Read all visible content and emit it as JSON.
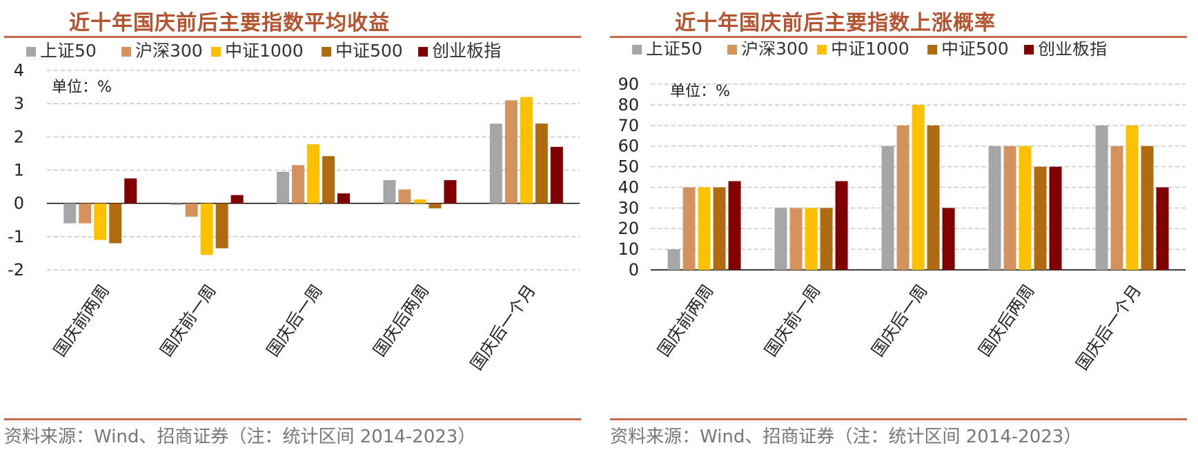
{
  "panels": [
    {
      "title": "近十年国庆前后主要指数平均收益",
      "source": "资料来源：Wind、招商证券（注：统计区间 2014-2023）",
      "unit": "单位：%"
    },
    {
      "title": "近十年国庆前后主要指数上涨概率",
      "source": "资料来源：Wind、招商证券（注：统计区间 2014-2023）",
      "unit": "单位：%"
    }
  ],
  "colors": {
    "title": "#b5532e",
    "rule": "#c8694a",
    "series": [
      "#a6a6a6",
      "#d4935c",
      "#ffc000",
      "#b06a10",
      "#800000"
    ]
  },
  "chart_data": [
    {
      "type": "bar",
      "title": "近十年国庆前后主要指数平均收益",
      "categories": [
        "国庆前两周",
        "国庆前一周",
        "国庆后一周",
        "国庆后两周",
        "国庆后一个月"
      ],
      "series": [
        {
          "name": "上证50",
          "values": [
            -0.6,
            -0.05,
            0.95,
            0.7,
            2.4
          ]
        },
        {
          "name": "沪深300",
          "values": [
            -0.6,
            -0.4,
            1.15,
            0.42,
            3.1
          ]
        },
        {
          "name": "中证1000",
          "values": [
            -1.1,
            -1.55,
            1.78,
            0.12,
            3.2
          ]
        },
        {
          "name": "中证500",
          "values": [
            -1.2,
            -1.35,
            1.42,
            -0.15,
            2.4
          ]
        },
        {
          "name": "创业板指",
          "values": [
            0.75,
            0.25,
            0.3,
            0.7,
            1.7
          ]
        }
      ],
      "ylim": [
        -2,
        4
      ],
      "yticks": [
        "4",
        "3",
        "2",
        "1",
        "0",
        "-1",
        "-2"
      ],
      "grid": true,
      "legend": "top"
    },
    {
      "type": "bar",
      "title": "近十年国庆前后主要指数上涨概率",
      "categories": [
        "国庆前两周",
        "国庆前一周",
        "国庆后一周",
        "国庆后两周",
        "国庆后一个月"
      ],
      "series": [
        {
          "name": "上证50",
          "values": [
            10,
            30,
            60,
            60,
            70
          ]
        },
        {
          "name": "沪深300",
          "values": [
            40,
            30,
            70,
            60,
            60
          ]
        },
        {
          "name": "中证1000",
          "values": [
            40,
            30,
            80,
            60,
            70
          ]
        },
        {
          "name": "中证500",
          "values": [
            40,
            30,
            70,
            50,
            60
          ]
        },
        {
          "name": "创业板指",
          "values": [
            43,
            43,
            30,
            50,
            40
          ]
        }
      ],
      "ylim": [
        0,
        90
      ],
      "yticks": [
        "90",
        "80",
        "70",
        "60",
        "50",
        "40",
        "30",
        "20",
        "10",
        "0"
      ],
      "grid": true,
      "legend": "top"
    }
  ]
}
